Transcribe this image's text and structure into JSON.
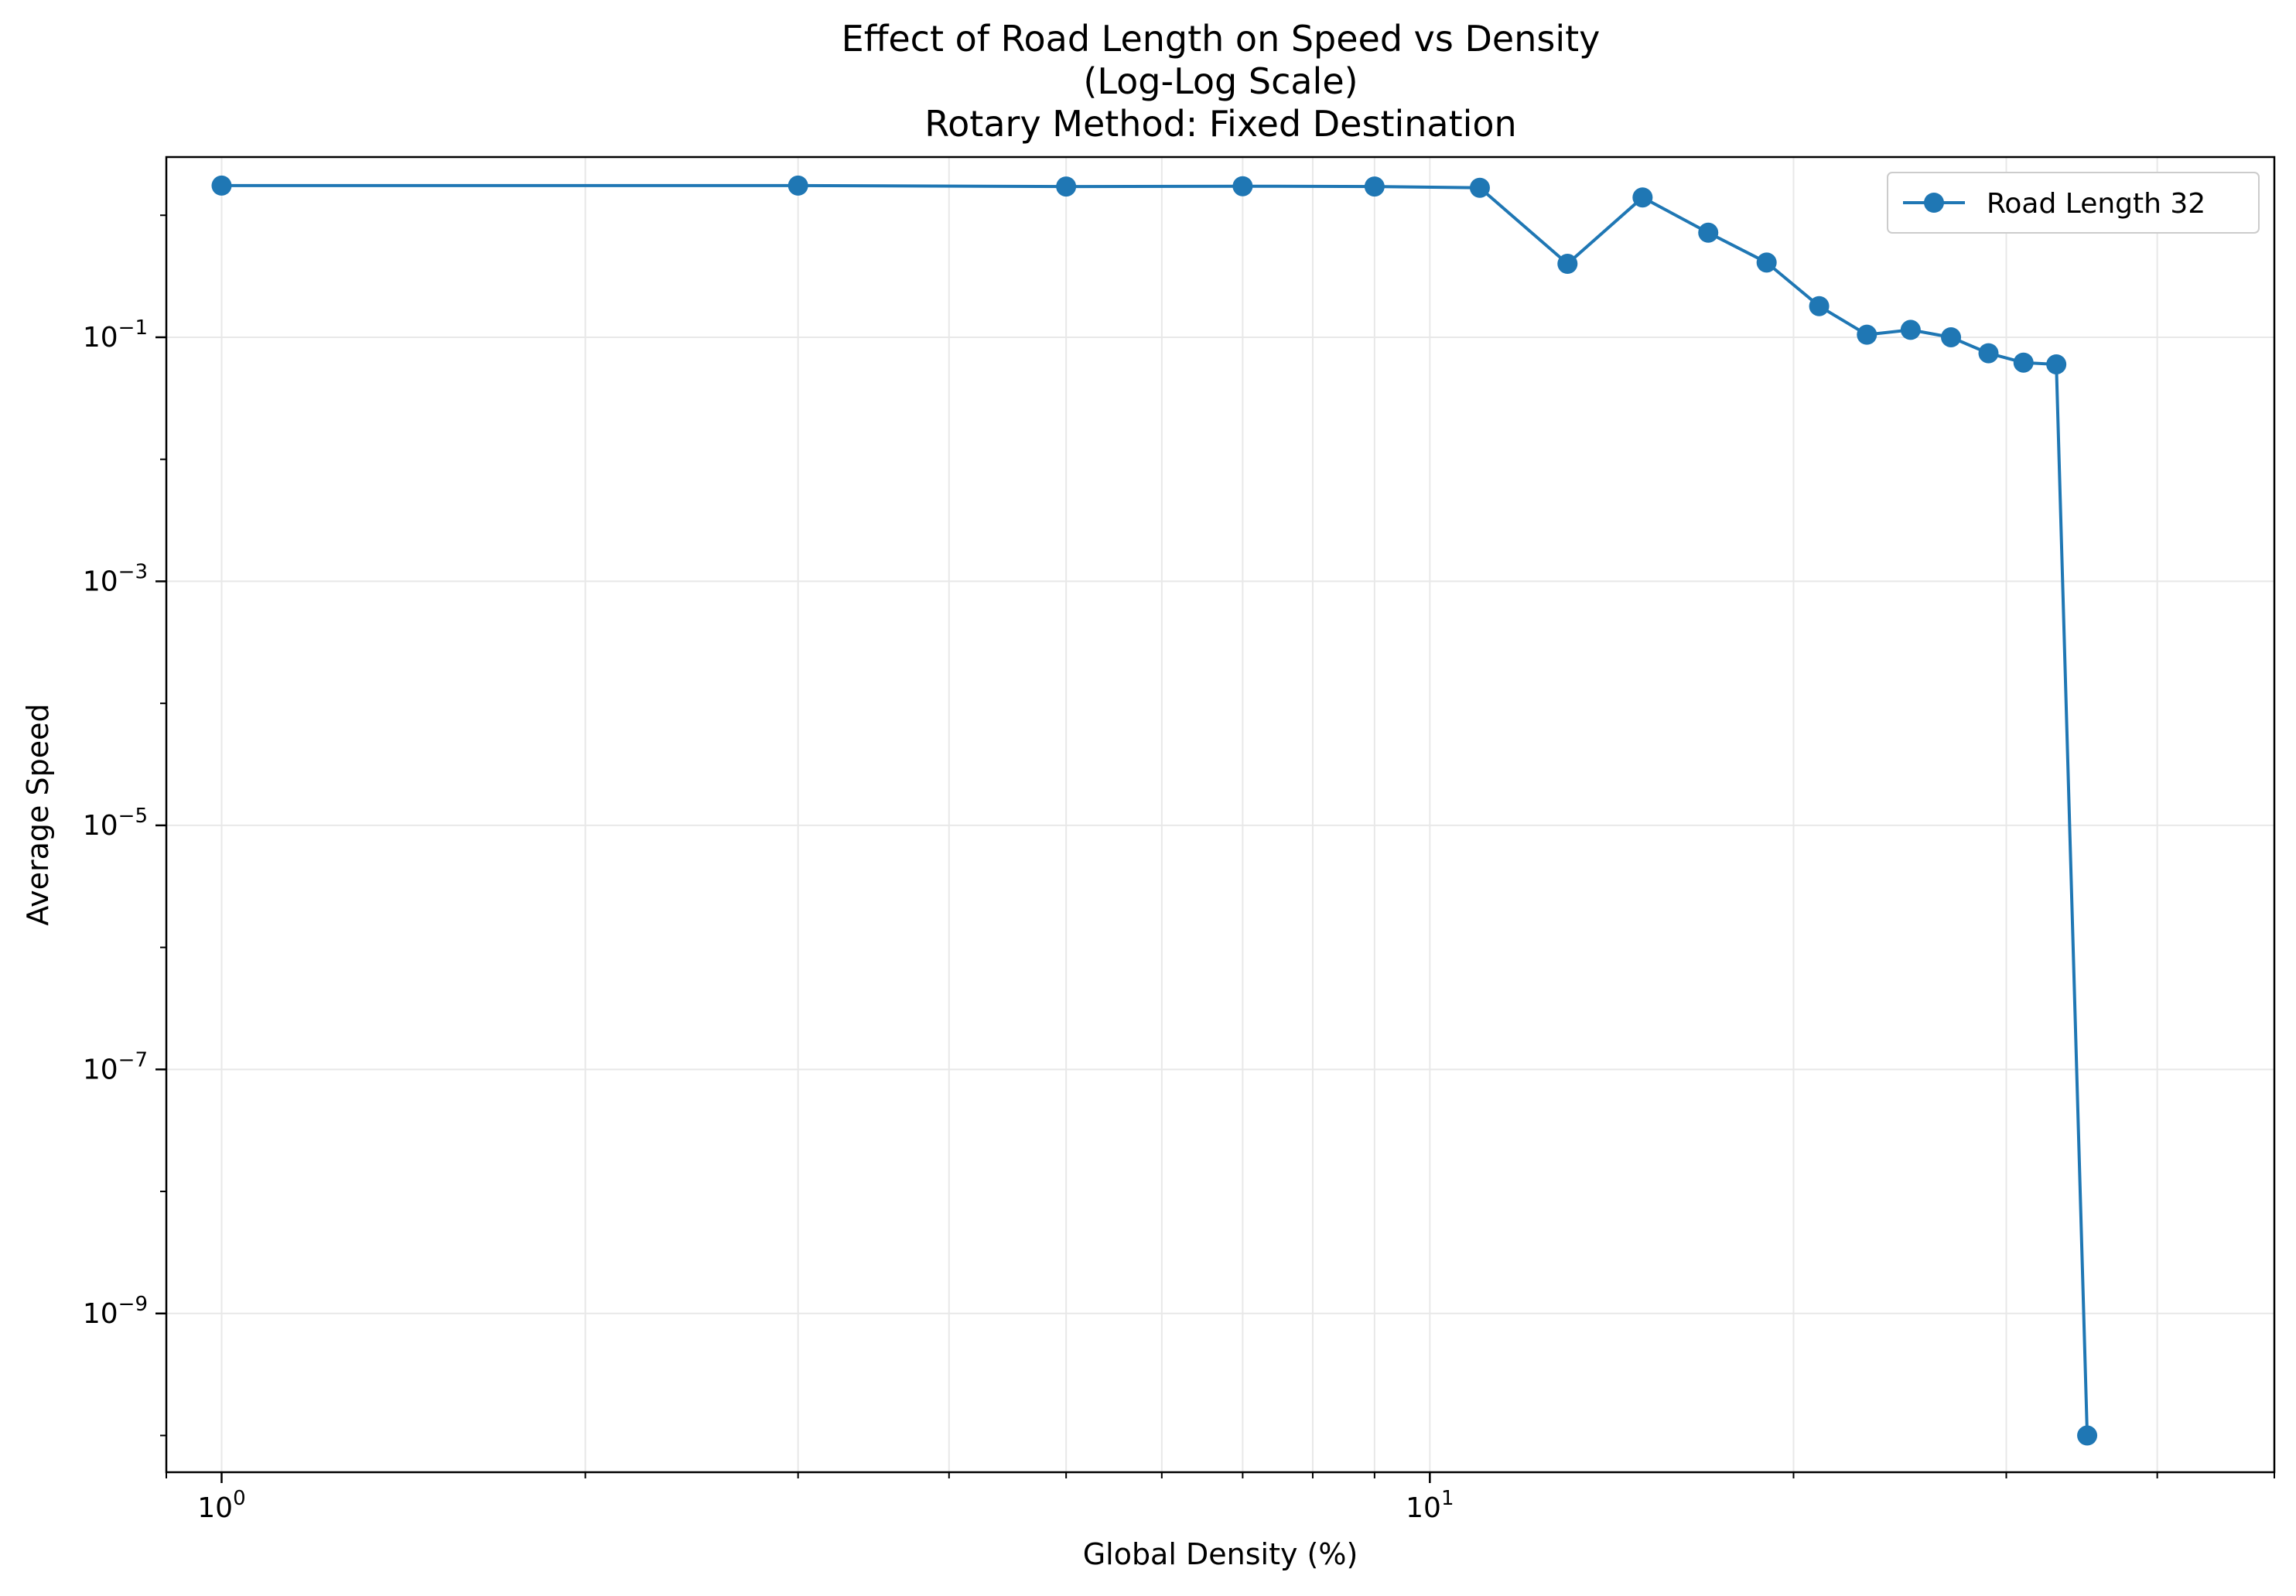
{
  "chart_data": {
    "type": "line",
    "title": [
      "Effect of Road Length on Speed vs Density",
      "(Log-Log Scale)",
      "Rotary Method: Fixed Destination"
    ],
    "xlabel": "Global Density (%)",
    "ylabel": "Average Speed",
    "xscale": "log",
    "yscale": "log",
    "xlim": [
      0.9,
      50
    ],
    "ylim": [
      5e-11,
      3
    ],
    "x_tick_labels": [
      {
        "value": 1,
        "base": "10",
        "exp": "0"
      },
      {
        "value": 10,
        "base": "10",
        "exp": "1"
      }
    ],
    "y_tick_labels": [
      {
        "value": 0.1,
        "base": "10",
        "exp": "−1"
      },
      {
        "value": 0.001,
        "base": "10",
        "exp": "−3"
      },
      {
        "value": 1e-05,
        "base": "10",
        "exp": "−5"
      },
      {
        "value": 1e-07,
        "base": "10",
        "exp": "−7"
      },
      {
        "value": 1e-09,
        "base": "10",
        "exp": "−9"
      }
    ],
    "grid": true,
    "legend_position": "upper right",
    "colors": {
      "series": "#1f77b4",
      "grid": "#e8e8e8",
      "axes": "#000000"
    },
    "series": [
      {
        "name": "Road Length 32",
        "x": [
          1.0,
          3.0,
          5.0,
          7.0,
          9.0,
          11.0,
          13.0,
          15.0,
          17.0,
          19.0,
          21.0,
          23.0,
          25.0,
          27.0,
          29.0,
          31.0,
          33.0,
          35.0
        ],
        "y": [
          1.75,
          1.75,
          1.72,
          1.73,
          1.72,
          1.68,
          0.4,
          1.4,
          0.72,
          0.41,
          0.18,
          0.105,
          0.115,
          0.1,
          0.074,
          0.062,
          0.06,
          1e-10
        ]
      }
    ]
  }
}
